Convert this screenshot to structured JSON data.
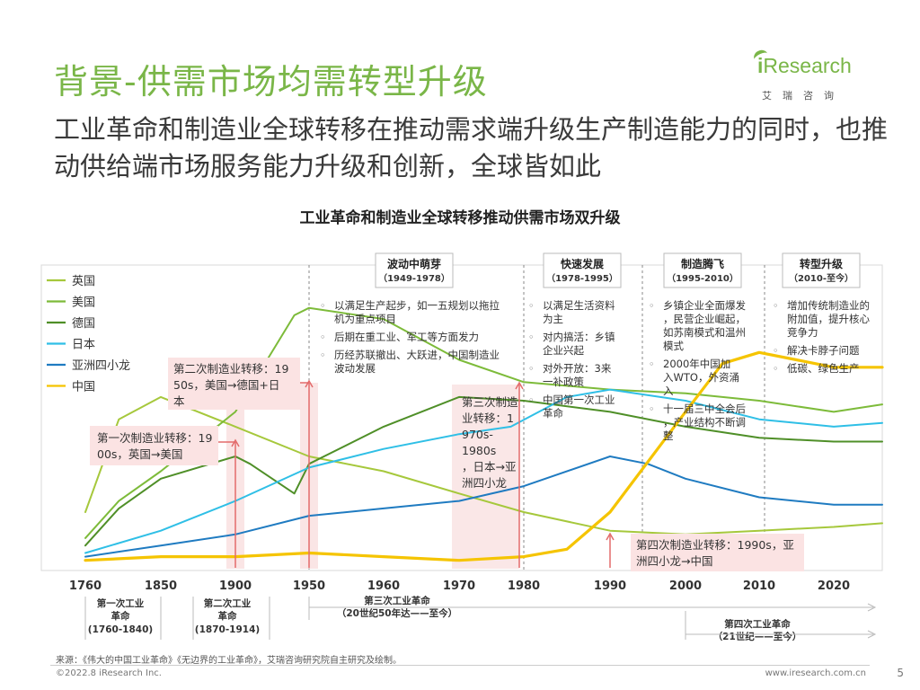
{
  "slide": {
    "title": "背景-供需市场均需转型升级",
    "subtitle": "工业革命和制造业全球转移在推动需求端升级生产制造能力的同时，也推动供给端市场服务能力升级和创新，全球皆如此",
    "logo_text": "Research",
    "logo_i": "i",
    "logo_sub": "艾瑞咨询",
    "source": "来源：《伟大的中国工业革命》《无边界的工业革命》，艾瑞咨询研究院自主研究及绘制。",
    "copyright": "©2022.8 iResearch Inc.",
    "url": "www.iresearch.com.cn",
    "page": "5"
  },
  "colors": {
    "uk": "#a6c83c",
    "us": "#7dbb3a",
    "de": "#4f8f28",
    "jp": "#2fbfe6",
    "asia4": "#1f7bc1",
    "cn": "#f5c400",
    "arrow": "#e36b6b"
  },
  "chart_data": {
    "type": "line",
    "title": "工业革命和制造业全球转移推动供需市场双升级",
    "xlabel": "",
    "ylabel": "",
    "x_ticks": [
      1760,
      1850,
      1900,
      1950,
      1960,
      1970,
      1980,
      1990,
      2000,
      2010,
      2020
    ],
    "x_tick_labels": [
      "1760",
      "1850",
      "1900",
      "1950",
      "1960",
      "1970",
      "1980",
      "1990",
      "2000",
      "2010",
      "2020"
    ],
    "legend_position": "top-left",
    "series": [
      {
        "name": "英国",
        "key": "uk",
        "points": [
          [
            1760,
            15
          ],
          [
            1800,
            40
          ],
          [
            1850,
            46
          ],
          [
            1900,
            38
          ],
          [
            1950,
            30
          ],
          [
            1960,
            26
          ],
          [
            1970,
            20
          ],
          [
            1980,
            15
          ],
          [
            1990,
            10
          ],
          [
            2000,
            9
          ],
          [
            2010,
            10
          ],
          [
            2020,
            11
          ],
          [
            2027,
            12
          ]
        ]
      },
      {
        "name": "美国",
        "key": "us",
        "points": [
          [
            1760,
            8
          ],
          [
            1800,
            18
          ],
          [
            1850,
            26
          ],
          [
            1900,
            42
          ],
          [
            1940,
            68
          ],
          [
            1950,
            70
          ],
          [
            1960,
            67
          ],
          [
            1970,
            56
          ],
          [
            1980,
            50
          ],
          [
            1990,
            48
          ],
          [
            2000,
            47
          ],
          [
            2010,
            45
          ],
          [
            2020,
            42
          ],
          [
            2027,
            44
          ]
        ]
      },
      {
        "name": "德国",
        "key": "de",
        "points": [
          [
            1760,
            6
          ],
          [
            1800,
            16
          ],
          [
            1850,
            24
          ],
          [
            1900,
            30
          ],
          [
            1910,
            28
          ],
          [
            1940,
            20
          ],
          [
            1950,
            28
          ],
          [
            1960,
            38
          ],
          [
            1970,
            46
          ],
          [
            1980,
            45
          ],
          [
            1990,
            42
          ],
          [
            2000,
            38
          ],
          [
            2010,
            35
          ],
          [
            2020,
            34
          ],
          [
            2027,
            34
          ]
        ]
      },
      {
        "name": "日本",
        "key": "jp",
        "points": [
          [
            1760,
            4
          ],
          [
            1850,
            10
          ],
          [
            1900,
            18
          ],
          [
            1950,
            27
          ],
          [
            1960,
            32
          ],
          [
            1970,
            36
          ],
          [
            1978,
            38
          ],
          [
            1985,
            46
          ],
          [
            1990,
            48
          ],
          [
            2000,
            45
          ],
          [
            2010,
            40
          ],
          [
            2020,
            38
          ],
          [
            2027,
            39
          ]
        ]
      },
      {
        "name": "亚洲四小龙",
        "key": "asia4",
        "points": [
          [
            1760,
            3
          ],
          [
            1850,
            6
          ],
          [
            1900,
            9
          ],
          [
            1950,
            14
          ],
          [
            1960,
            16
          ],
          [
            1970,
            18
          ],
          [
            1980,
            22
          ],
          [
            1990,
            30
          ],
          [
            1995,
            28
          ],
          [
            2000,
            24
          ],
          [
            2010,
            19
          ],
          [
            2020,
            17
          ],
          [
            2027,
            17
          ]
        ]
      },
      {
        "name": "中国",
        "key": "cn",
        "points": [
          [
            1760,
            2
          ],
          [
            1850,
            3
          ],
          [
            1900,
            3
          ],
          [
            1950,
            4
          ],
          [
            1960,
            3
          ],
          [
            1970,
            2
          ],
          [
            1980,
            3
          ],
          [
            1985,
            5
          ],
          [
            1990,
            15
          ],
          [
            2000,
            42
          ],
          [
            2005,
            55
          ],
          [
            2010,
            58
          ],
          [
            2015,
            56
          ],
          [
            2020,
            54
          ],
          [
            2027,
            54
          ]
        ]
      }
    ],
    "phases": [
      {
        "title": "波动中萌芽",
        "range": "（1949-1978）",
        "items": [
          "以满足生产起步，如一五规划以拖拉机为重点项目",
          "后期在重工业、军工等方面发力",
          "历经苏联撤出、大跃进，中国制造业波动发展"
        ]
      },
      {
        "title": "快速发展",
        "range": "（1978-1995）",
        "items": [
          "以满足生活资料为主",
          "对内搞活：乡镇企业兴起",
          "对外开放：3来一补政策",
          "中国第一次工业革命"
        ]
      },
      {
        "title": "制造腾飞",
        "range": "（1995-2010）",
        "items": [
          "乡镇企业全面爆发，民营企业崛起，如苏南模式和温州模式",
          "2000年中国加入WTO，外资涌入",
          "十一届三中全会后，产业结构不断调整"
        ]
      },
      {
        "title": "转型升级",
        "range": "（2010-至今）",
        "items": [
          "增加传统制造业的附加值，提升核心竞争力",
          "解决卡脖子问题",
          "低碳、绿色生产"
        ]
      }
    ],
    "annotations": {
      "first_transfer": "第一次制造业转移：1900s，英国→美国",
      "second_transfer": "第二次制造业转移：1950s，美国→德国+日本",
      "third_transfer": "第三次制造业转移：1970s-1980s，日本→亚洲四小龙",
      "fourth_transfer": "第四次制造业转移：1990s，亚洲四小龙→中国"
    },
    "revolutions": [
      {
        "name": "第一次工业革命",
        "range": "(1760-1840)"
      },
      {
        "name": "第二次工业革命",
        "range": "(1870-1914)"
      },
      {
        "name": "第三次工业革命",
        "range": "（20世纪50年达——至今）"
      },
      {
        "name": "第四次工业革命",
        "range": "（21世纪——至今）"
      }
    ]
  }
}
